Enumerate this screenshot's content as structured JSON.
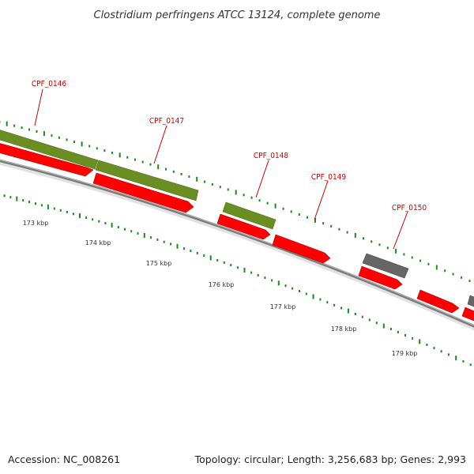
{
  "title": "Clostridium perfringens ATCC 13124, complete genome",
  "footer": {
    "accession": "Accession: NC_008261",
    "topology": "Topology: circular; Length: 3,256,683 bp; Genes: 2,993"
  },
  "colors": {
    "gene_green": "#6b8e23",
    "gene_red": "#ff0000",
    "gene_gray": "#666666",
    "backbone": "#888888",
    "tick_green": "#1a8a1a",
    "label_red": "#cc0000"
  },
  "gene_labels": [
    "CPF_0146",
    "CPF_0147",
    "CPF_0148",
    "CPF_0149",
    "CPF_0150"
  ],
  "scale_labels": [
    "173 kbp",
    "174 kbp",
    "175 kbp",
    "176 kbp",
    "177 kbp",
    "178 kbp",
    "179 kbp"
  ]
}
